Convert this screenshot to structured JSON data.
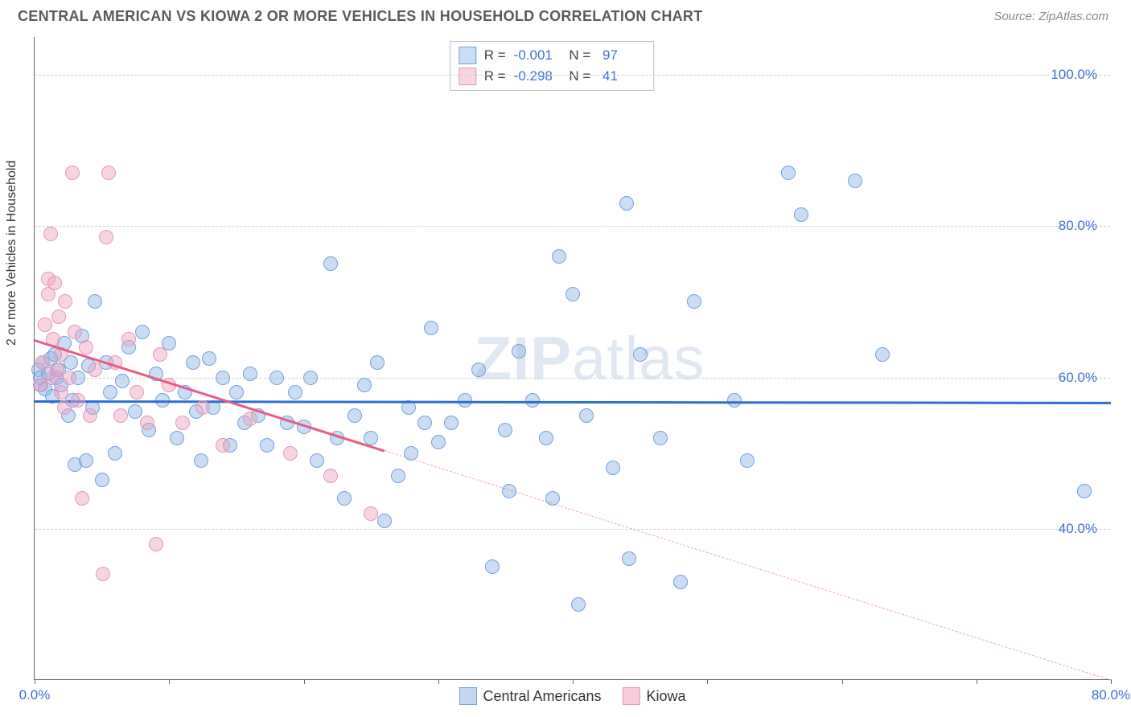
{
  "title": "CENTRAL AMERICAN VS KIOWA 2 OR MORE VEHICLES IN HOUSEHOLD CORRELATION CHART",
  "source_label": "Source: ZipAtlas.com",
  "watermark": "ZIPatlas",
  "chart": {
    "type": "scatter",
    "ylabel": "2 or more Vehicles in Household",
    "xlim": [
      0,
      80
    ],
    "ylim": [
      20,
      105
    ],
    "xticks": [
      0,
      10,
      20,
      30,
      40,
      50,
      60,
      70,
      80
    ],
    "xtick_labels": {
      "0": "0.0%",
      "80": "80.0%"
    },
    "yticks": [
      40,
      60,
      80,
      100
    ],
    "ytick_labels": [
      "40.0%",
      "60.0%",
      "80.0%",
      "100.0%"
    ],
    "background_color": "#ffffff",
    "grid_color": "#cfcfcf",
    "axis_color": "#666666",
    "tick_label_color": "#3c6fd6",
    "point_radius": 9,
    "series": [
      {
        "name": "Central Americans",
        "fill": "rgba(140,180,230,0.45)",
        "stroke": "#6fa2db",
        "R": "-0.001",
        "N": "97",
        "trend": {
          "y_at_x0": 57,
          "y_at_x80": 56.8,
          "color": "#2e6fd0",
          "width": 3,
          "solid_until_x": 80
        },
        "points": [
          [
            0.3,
            61
          ],
          [
            0.4,
            60
          ],
          [
            0.5,
            59
          ],
          [
            0.6,
            62
          ],
          [
            0.8,
            58.5
          ],
          [
            1,
            60.5
          ],
          [
            1.2,
            62.5
          ],
          [
            1.3,
            57.5
          ],
          [
            1.5,
            63
          ],
          [
            1.6,
            60
          ],
          [
            1.8,
            61
          ],
          [
            2,
            59
          ],
          [
            2.2,
            64.5
          ],
          [
            2.5,
            55
          ],
          [
            2.7,
            62
          ],
          [
            2.8,
            57
          ],
          [
            3,
            48.5
          ],
          [
            3.2,
            60
          ],
          [
            3.5,
            65.5
          ],
          [
            3.8,
            49
          ],
          [
            4,
            61.5
          ],
          [
            4.3,
            56
          ],
          [
            4.5,
            70
          ],
          [
            5,
            46.5
          ],
          [
            5.3,
            62
          ],
          [
            5.6,
            58
          ],
          [
            6,
            50
          ],
          [
            6.5,
            59.5
          ],
          [
            7,
            64
          ],
          [
            7.5,
            55.5
          ],
          [
            8,
            66
          ],
          [
            8.5,
            53
          ],
          [
            9,
            60.5
          ],
          [
            9.5,
            57
          ],
          [
            10,
            64.5
          ],
          [
            10.6,
            52
          ],
          [
            11.2,
            58
          ],
          [
            11.8,
            62
          ],
          [
            12,
            55.5
          ],
          [
            12.4,
            49
          ],
          [
            13,
            62.5
          ],
          [
            13.3,
            56
          ],
          [
            14,
            60
          ],
          [
            14.5,
            51
          ],
          [
            15,
            58
          ],
          [
            15.6,
            54
          ],
          [
            16,
            60.5
          ],
          [
            16.6,
            55
          ],
          [
            17.3,
            51
          ],
          [
            18,
            60
          ],
          [
            18.8,
            54
          ],
          [
            19.4,
            58
          ],
          [
            20,
            53.5
          ],
          [
            20.5,
            60
          ],
          [
            21,
            49
          ],
          [
            22,
            75
          ],
          [
            22.5,
            52
          ],
          [
            23,
            44
          ],
          [
            23.8,
            55
          ],
          [
            24.5,
            59
          ],
          [
            25,
            52
          ],
          [
            25.5,
            62
          ],
          [
            26,
            41
          ],
          [
            27,
            47
          ],
          [
            27.8,
            56
          ],
          [
            28,
            50
          ],
          [
            29,
            54
          ],
          [
            29.5,
            66.5
          ],
          [
            30,
            51.5
          ],
          [
            31,
            54
          ],
          [
            32,
            57
          ],
          [
            33,
            61
          ],
          [
            34,
            35
          ],
          [
            35,
            53
          ],
          [
            35.3,
            45
          ],
          [
            36,
            63.5
          ],
          [
            37,
            57
          ],
          [
            38,
            52
          ],
          [
            38.5,
            44
          ],
          [
            39,
            76
          ],
          [
            40,
            71
          ],
          [
            40.4,
            30
          ],
          [
            41,
            55
          ],
          [
            43,
            48
          ],
          [
            44,
            83
          ],
          [
            44.2,
            36
          ],
          [
            45,
            63
          ],
          [
            46.5,
            52
          ],
          [
            48,
            33
          ],
          [
            49,
            70
          ],
          [
            52,
            57
          ],
          [
            53,
            49
          ],
          [
            56,
            87
          ],
          [
            57,
            81.5
          ],
          [
            61,
            86
          ],
          [
            63,
            63
          ],
          [
            78,
            45
          ]
        ]
      },
      {
        "name": "Kiowa",
        "fill": "rgba(240,160,190,0.45)",
        "stroke": "#e497b3",
        "R": "-0.298",
        "N": "41",
        "trend": {
          "y_at_x0": 65,
          "y_at_x80": 20,
          "color": "#e85b86",
          "width": 3,
          "solid_until_x": 26
        },
        "points": [
          [
            0.4,
            59
          ],
          [
            0.6,
            62
          ],
          [
            0.8,
            67
          ],
          [
            1,
            71
          ],
          [
            1,
            73
          ],
          [
            1.2,
            79
          ],
          [
            1.3,
            60
          ],
          [
            1.4,
            65
          ],
          [
            1.5,
            72.5
          ],
          [
            1.7,
            61
          ],
          [
            1.8,
            68
          ],
          [
            2,
            58
          ],
          [
            2,
            63
          ],
          [
            2.2,
            56
          ],
          [
            2.3,
            70
          ],
          [
            2.6,
            60
          ],
          [
            2.8,
            87
          ],
          [
            3,
            66
          ],
          [
            3.2,
            57
          ],
          [
            3.5,
            44
          ],
          [
            3.8,
            64
          ],
          [
            4.1,
            55
          ],
          [
            4.5,
            61
          ],
          [
            5.1,
            34
          ],
          [
            5.3,
            78.5
          ],
          [
            5.5,
            87
          ],
          [
            6,
            62
          ],
          [
            6.4,
            55
          ],
          [
            7,
            65
          ],
          [
            7.6,
            58
          ],
          [
            8.4,
            54
          ],
          [
            9,
            38
          ],
          [
            9.3,
            63
          ],
          [
            10,
            59
          ],
          [
            11,
            54
          ],
          [
            12.5,
            56
          ],
          [
            14,
            51
          ],
          [
            16,
            54.5
          ],
          [
            19,
            50
          ],
          [
            22,
            47
          ],
          [
            25,
            42
          ]
        ]
      }
    ],
    "legend_bottom": [
      {
        "label": "Central Americans",
        "fill": "rgba(140,180,230,0.55)",
        "stroke": "#6fa2db"
      },
      {
        "label": "Kiowa",
        "fill": "rgba(240,160,190,0.55)",
        "stroke": "#e497b3"
      }
    ]
  }
}
